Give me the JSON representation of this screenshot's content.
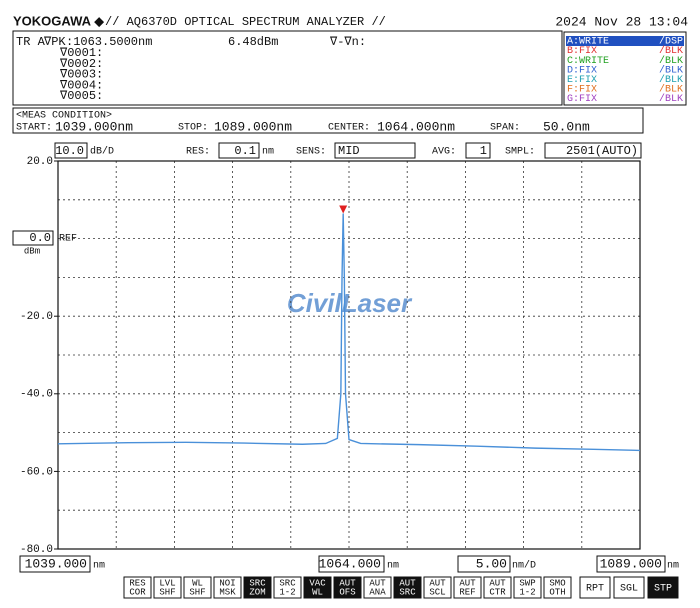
{
  "header": {
    "brand": "YOKOGAWA ◆",
    "title": "// AQ6370D OPTICAL SPECTRUM ANALYZER //",
    "datetime": "2024 Nov 28 13:04"
  },
  "marker": {
    "trace": "TR A",
    "label": "∇PK",
    "wavelength": ":1063.5000nm",
    "level": "6.48dBm",
    "delta": "∇-∇n:",
    "markers": [
      "∇0001:",
      "∇0002:",
      "∇0003:",
      "∇0004:",
      "∇0005:"
    ]
  },
  "traces": [
    {
      "name": "A:WRITE",
      "state": "/DSP",
      "color": "#ffffff",
      "active": true
    },
    {
      "name": "B:FIX",
      "state": "/BLK",
      "color": "#e03030",
      "active": false
    },
    {
      "name": "C:WRITE",
      "state": "/BLK",
      "color": "#20a020",
      "active": false
    },
    {
      "name": "D:FIX",
      "state": "/BLK",
      "color": "#3060d0",
      "active": false
    },
    {
      "name": "E:FIX",
      "state": "/BLK",
      "color": "#1fa0b0",
      "active": false
    },
    {
      "name": "F:FIX",
      "state": "/BLK",
      "color": "#e07020",
      "active": false
    },
    {
      "name": "G:FIX",
      "state": "/BLK",
      "color": "#a040c0",
      "active": false
    }
  ],
  "meas_condition": {
    "title": "<MEAS CONDITION>",
    "fields": [
      {
        "label": "START:",
        "value": "1039.000nm"
      },
      {
        "label": "STOP:",
        "value": "1089.000nm"
      },
      {
        "label": "CENTER:",
        "value": "1064.000nm"
      },
      {
        "label": "SPAN:",
        "value": "50.0nm"
      }
    ]
  },
  "settings": [
    {
      "value": "10.0",
      "unit": "dB/D"
    },
    {
      "label": "RES:",
      "value": "0.1",
      "unit": "nm"
    },
    {
      "label": "SENS:",
      "value": "MID"
    },
    {
      "label": "AVG:",
      "value": "1"
    },
    {
      "label": "SMPL:",
      "value": "2501(AUTO)"
    }
  ],
  "ref": {
    "value": "0.0",
    "label": "REF",
    "unit": "dBm"
  },
  "scale_bottom": [
    {
      "value": "1039.000",
      "unit": "nm"
    },
    {
      "value": "1064.000",
      "unit": "nm"
    },
    {
      "value": "5.00",
      "unit": "nm/D"
    },
    {
      "value": "1089.000",
      "unit": "nm"
    }
  ],
  "softkeys": [
    {
      "lines": [
        "RES",
        "COR"
      ],
      "active": false
    },
    {
      "lines": [
        "LVL",
        "SHF"
      ],
      "active": false
    },
    {
      "lines": [
        "WL",
        "SHF"
      ],
      "active": false
    },
    {
      "lines": [
        "NOI",
        "MSK"
      ],
      "active": false
    },
    {
      "lines": [
        "SRC",
        "ZOM"
      ],
      "active": true
    },
    {
      "lines": [
        "SRC",
        "1-2"
      ],
      "active": false
    },
    {
      "lines": [
        "VAC",
        "WL"
      ],
      "active": true
    },
    {
      "lines": [
        "AUT",
        "OFS"
      ],
      "active": true
    },
    {
      "lines": [
        "AUT",
        "ANA"
      ],
      "active": false
    },
    {
      "lines": [
        "AUT",
        "SRC"
      ],
      "active": true
    },
    {
      "lines": [
        "AUT",
        "SCL"
      ],
      "active": false
    },
    {
      "lines": [
        "AUT",
        "REF"
      ],
      "active": false
    },
    {
      "lines": [
        "AUT",
        "CTR"
      ],
      "active": false
    },
    {
      "lines": [
        "SWP",
        "1-2"
      ],
      "active": false
    },
    {
      "lines": [
        "SMO",
        "OTH"
      ],
      "active": false
    }
  ],
  "buttons": [
    {
      "label": "RPT",
      "active": false
    },
    {
      "label": "SGL",
      "active": false
    },
    {
      "label": "STP",
      "active": true
    }
  ],
  "watermark": "CivilLaser",
  "chart_data": {
    "type": "line",
    "x": [
      1039,
      1045,
      1050,
      1055,
      1060,
      1062,
      1063,
      1063.3,
      1063.4,
      1063.5,
      1063.6,
      1063.7,
      1064,
      1065,
      1070,
      1075,
      1080,
      1085,
      1089
    ],
    "series": [
      {
        "color": "#4a90d9",
        "values": [
          -52.9,
          -52.6,
          -52.5,
          -52.7,
          -53.0,
          -52.8,
          -51.5,
          -40,
          -10,
          6.48,
          -10,
          -40,
          -51.8,
          -52.8,
          -53.1,
          -53.5,
          -54.0,
          -54.3,
          -54.6
        ]
      }
    ],
    "xlim": [
      1039,
      1089
    ],
    "ylim": [
      -80,
      20
    ],
    "yticks": [
      {
        "value": 20,
        "label": "20.0"
      },
      {
        "value": -20,
        "label": "-20.0"
      },
      {
        "value": -40,
        "label": "-40.0"
      },
      {
        "value": -60,
        "label": "-60.0"
      },
      {
        "value": -80,
        "label": "-80.0"
      }
    ],
    "ygrid": [
      20,
      10,
      0,
      -10,
      -20,
      -30,
      -40,
      -50,
      -60,
      -70,
      -80
    ],
    "xgrid": [
      1039,
      1044,
      1049,
      1054,
      1059,
      1064,
      1069,
      1074,
      1079,
      1084,
      1089
    ],
    "grid": true,
    "peak_marker": {
      "x": 1063.5,
      "y": 6.48,
      "color": "#e02020"
    }
  }
}
